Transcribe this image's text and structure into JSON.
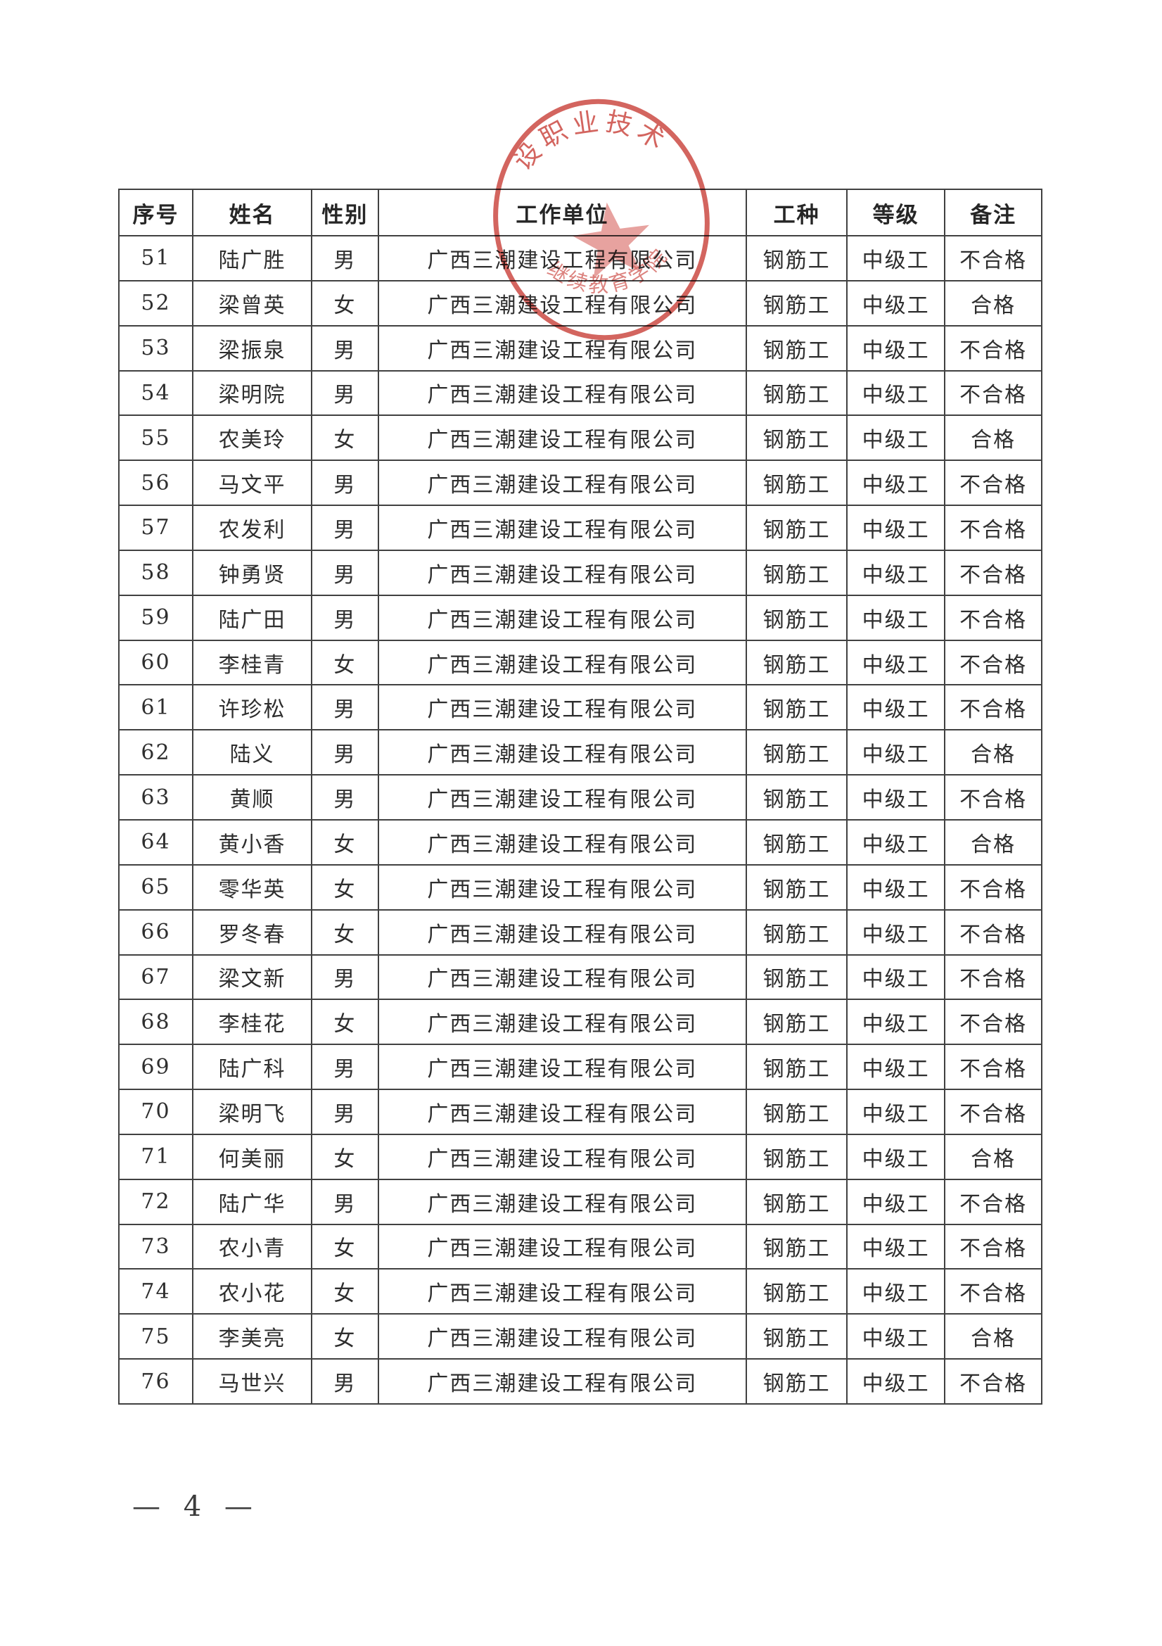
{
  "table": {
    "headers": [
      "序号",
      "姓名",
      "性别",
      "工作单位",
      "工种",
      "等级",
      "备注"
    ],
    "rows": [
      [
        "51",
        "陆广胜",
        "男",
        "广西三潮建设工程有限公司",
        "钢筋工",
        "中级工",
        "不合格"
      ],
      [
        "52",
        "梁曾英",
        "女",
        "广西三潮建设工程有限公司",
        "钢筋工",
        "中级工",
        "合格"
      ],
      [
        "53",
        "梁振泉",
        "男",
        "广西三潮建设工程有限公司",
        "钢筋工",
        "中级工",
        "不合格"
      ],
      [
        "54",
        "梁明院",
        "男",
        "广西三潮建设工程有限公司",
        "钢筋工",
        "中级工",
        "不合格"
      ],
      [
        "55",
        "农美玲",
        "女",
        "广西三潮建设工程有限公司",
        "钢筋工",
        "中级工",
        "合格"
      ],
      [
        "56",
        "马文平",
        "男",
        "广西三潮建设工程有限公司",
        "钢筋工",
        "中级工",
        "不合格"
      ],
      [
        "57",
        "农发利",
        "男",
        "广西三潮建设工程有限公司",
        "钢筋工",
        "中级工",
        "不合格"
      ],
      [
        "58",
        "钟勇贤",
        "男",
        "广西三潮建设工程有限公司",
        "钢筋工",
        "中级工",
        "不合格"
      ],
      [
        "59",
        "陆广田",
        "男",
        "广西三潮建设工程有限公司",
        "钢筋工",
        "中级工",
        "不合格"
      ],
      [
        "60",
        "李桂青",
        "女",
        "广西三潮建设工程有限公司",
        "钢筋工",
        "中级工",
        "不合格"
      ],
      [
        "61",
        "许珍松",
        "男",
        "广西三潮建设工程有限公司",
        "钢筋工",
        "中级工",
        "不合格"
      ],
      [
        "62",
        "陆义",
        "男",
        "广西三潮建设工程有限公司",
        "钢筋工",
        "中级工",
        "合格"
      ],
      [
        "63",
        "黄顺",
        "男",
        "广西三潮建设工程有限公司",
        "钢筋工",
        "中级工",
        "不合格"
      ],
      [
        "64",
        "黄小香",
        "女",
        "广西三潮建设工程有限公司",
        "钢筋工",
        "中级工",
        "合格"
      ],
      [
        "65",
        "零华英",
        "女",
        "广西三潮建设工程有限公司",
        "钢筋工",
        "中级工",
        "不合格"
      ],
      [
        "66",
        "罗冬春",
        "女",
        "广西三潮建设工程有限公司",
        "钢筋工",
        "中级工",
        "不合格"
      ],
      [
        "67",
        "梁文新",
        "男",
        "广西三潮建设工程有限公司",
        "钢筋工",
        "中级工",
        "不合格"
      ],
      [
        "68",
        "李桂花",
        "女",
        "广西三潮建设工程有限公司",
        "钢筋工",
        "中级工",
        "不合格"
      ],
      [
        "69",
        "陆广科",
        "男",
        "广西三潮建设工程有限公司",
        "钢筋工",
        "中级工",
        "不合格"
      ],
      [
        "70",
        "梁明飞",
        "男",
        "广西三潮建设工程有限公司",
        "钢筋工",
        "中级工",
        "不合格"
      ],
      [
        "71",
        "何美丽",
        "女",
        "广西三潮建设工程有限公司",
        "钢筋工",
        "中级工",
        "合格"
      ],
      [
        "72",
        "陆广华",
        "男",
        "广西三潮建设工程有限公司",
        "钢筋工",
        "中级工",
        "不合格"
      ],
      [
        "73",
        "农小青",
        "女",
        "广西三潮建设工程有限公司",
        "钢筋工",
        "中级工",
        "不合格"
      ],
      [
        "74",
        "农小花",
        "女",
        "广西三潮建设工程有限公司",
        "钢筋工",
        "中级工",
        "不合格"
      ],
      [
        "75",
        "李美亮",
        "女",
        "广西三潮建设工程有限公司",
        "钢筋工",
        "中级工",
        "合格"
      ],
      [
        "76",
        "马世兴",
        "男",
        "广西三潮建设工程有限公司",
        "钢筋工",
        "中级工",
        "不合格"
      ]
    ]
  },
  "stamp": {
    "arc_top": "设职业技术",
    "arc_bottom": "继续教育学院",
    "color": "#c9403a"
  },
  "footer": {
    "page_label": "— 4 —"
  }
}
